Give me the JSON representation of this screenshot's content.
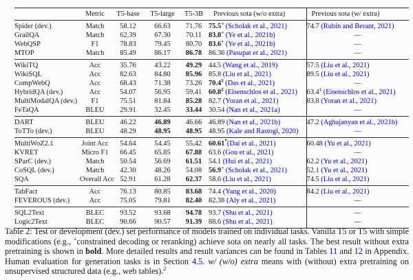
{
  "colors": {
    "link_blue": "#0000CC",
    "text": "#1b1b1b",
    "rule": "#2a2a2a"
  },
  "table": {
    "em_dash": "—",
    "headers": [
      "",
      "Metric",
      "T5-base",
      "T5-large",
      "T5-3B",
      "Previous sota (w/o extra)",
      "Previous sota (w/ extra)"
    ],
    "groups": [
      [
        {
          "task": "Spider (dev.)",
          "metric": "Match",
          "values": [
            "58.12",
            "66.63",
            "71.76"
          ],
          "bold_cols": [],
          "sota_wo": {
            "num": "75.5",
            "bold": true,
            "sup": "+",
            "cite": "(Scholak et al., 2021)"
          },
          "sota_w": {
            "num": "74.7",
            "bold": false,
            "sup": "",
            "cite": "(Rubin and Berant, 2021)"
          }
        },
        {
          "task": "GrailQA",
          "metric": "Match",
          "values": [
            "62.39",
            "67.30",
            "70.11"
          ],
          "bold_cols": [],
          "sota_wo": {
            "num": "83.8",
            "bold": true,
            "sup": "+",
            "cite": "(Ye et al., 2021b)"
          },
          "sota_w": null
        },
        {
          "task": "WebQSP",
          "metric": "F1",
          "values": [
            "78.83",
            "79.45",
            "80.70"
          ],
          "bold_cols": [],
          "sota_wo": {
            "num": "83.6",
            "bold": true,
            "sup": "+",
            "cite": "(Ye et al., 2021b)"
          },
          "sota_w": null
        },
        {
          "task": "MTOP",
          "metric": "Match",
          "values": [
            "85.49",
            "86.17",
            "86.78"
          ],
          "bold_cols": [
            2
          ],
          "sota_wo": {
            "num": "86.36",
            "bold": false,
            "sup": "",
            "cite": "(Pasupat et al., 2021)"
          },
          "sota_w": null
        }
      ],
      [
        {
          "task": "WikiTQ",
          "metric": "Acc",
          "values": [
            "35.76",
            "43.22",
            "49.29"
          ],
          "bold_cols": [
            2
          ],
          "sota_wo": {
            "num": "44.5",
            "bold": false,
            "sup": "",
            "cite": "(Wang et al., 2019)"
          },
          "sota_w": {
            "num": "57.5",
            "bold": false,
            "sup": "",
            "cite": "(Liu et al., 2021)"
          }
        },
        {
          "task": "WikiSQL",
          "metric": "Acc",
          "values": [
            "82.63",
            "84.80",
            "85.96"
          ],
          "bold_cols": [
            2
          ],
          "sota_wo": {
            "num": "85.8",
            "bold": false,
            "sup": "",
            "cite": "(Liu et al., 2021)"
          },
          "sota_w": {
            "num": "89.5",
            "bold": false,
            "sup": "",
            "cite": "(Liu et al., 2021)"
          }
        },
        {
          "task": "CompWebQ",
          "metric": "Acc",
          "values": [
            "68.43",
            "71.38",
            "73.26"
          ],
          "bold_cols": [],
          "sota_wo": {
            "num": "70.4",
            "bold": true,
            "sup": "‡",
            "cite": "(Das et al., 2021)"
          },
          "sota_w": null
        },
        {
          "task": "HybridQA (dev.)",
          "metric": "Acc",
          "values": [
            "54.07",
            "56.95",
            "59.41"
          ],
          "bold_cols": [],
          "sota_wo": {
            "num": "60.8",
            "bold": true,
            "sup": "‡",
            "cite": "(Eisenschlos et al., 2021)"
          },
          "sota_w": {
            "num": "63.4",
            "bold": false,
            "sup": "‡",
            "cite": "(Eisenschlos et al., 2021)"
          }
        },
        {
          "task": "MultiModalQA (dev.)",
          "metric": "F1",
          "values": [
            "75.51",
            "81.84",
            "85.28"
          ],
          "bold_cols": [
            2
          ],
          "sota_wo": {
            "num": "82.7",
            "bold": false,
            "sup": "",
            "cite": "(Yoran et al., 2021)"
          },
          "sota_w": {
            "num": "83.8",
            "bold": false,
            "sup": "",
            "cite": "(Yoran et al., 2021)"
          }
        },
        {
          "task": "FeTaQA",
          "metric": "BLEU",
          "values": [
            "29.91",
            "32.45",
            "33.44"
          ],
          "bold_cols": [
            2
          ],
          "sota_wo": {
            "num": "30.54",
            "bold": false,
            "sup": "",
            "cite": "(Nan et al., 2021a)"
          },
          "sota_w": null
        }
      ],
      [
        {
          "task": "DART",
          "metric": "BLEU",
          "values": [
            "46.22",
            "46.89",
            "46.66"
          ],
          "bold_cols": [
            1
          ],
          "sota_wo": {
            "num": "46.89",
            "bold": false,
            "sup": "",
            "cite": "(Nan et al., 2021b)"
          },
          "sota_w": {
            "num": "47.2",
            "bold": false,
            "sup": "",
            "cite": "(Aghajanyan et al., 2021b)"
          }
        },
        {
          "task": "ToTTo (dev.)",
          "metric": "BLEU",
          "values": [
            "48.29",
            "48.95",
            "48.95"
          ],
          "bold_cols": [
            1,
            2
          ],
          "sota_wo": {
            "num": "48.95",
            "bold": false,
            "sup": "",
            "cite": "(Kale and Rastogi, 2020)"
          },
          "sota_w": null
        }
      ],
      [
        {
          "task": "MultiWoZ2.1",
          "metric": "Joint Acc",
          "values": [
            "54.64",
            "54.45",
            "55.42"
          ],
          "bold_cols": [],
          "sota_wo": {
            "num": "60.61",
            "bold": true,
            "sup": "*",
            "cite": "(Dai et al., 2021)",
            "nogap": true
          },
          "sota_w": {
            "num": "60.48",
            "bold": false,
            "sup": "",
            "cite": "(Yu et al., 2021)"
          }
        },
        {
          "task": "KVRET",
          "metric": "Micro F1",
          "values": [
            "66.45",
            "65.85",
            "67.88"
          ],
          "bold_cols": [
            2
          ],
          "sota_wo": {
            "num": "63.6",
            "bold": false,
            "sup": "",
            "cite": "(Gou et al., 2021)"
          },
          "sota_w": null
        },
        {
          "task": "SParC (dev.)",
          "metric": "Match",
          "values": [
            "50.54",
            "56.69",
            "61.51"
          ],
          "bold_cols": [
            2
          ],
          "sota_wo": {
            "num": "54.1",
            "bold": false,
            "sup": "",
            "cite": "(Hui et al., 2021)"
          },
          "sota_w": {
            "num": "62.2",
            "bold": false,
            "sup": "",
            "cite": "(Yu et al., 2021)"
          }
        },
        {
          "task": "CoSQL (dev.)",
          "metric": "Match",
          "values": [
            "42.30",
            "48.26",
            "54.08"
          ],
          "bold_cols": [],
          "sota_wo": {
            "num": "56.9",
            "bold": true,
            "sup": "+",
            "cite": "(Scholak et al., 2021)"
          },
          "sota_w": {
            "num": "52.1",
            "bold": false,
            "sup": "",
            "cite": "(Yu et al., 2021)"
          }
        },
        {
          "task": "SQA",
          "metric": "Overall Acc",
          "values": [
            "52.91",
            "61.28",
            "62.37"
          ],
          "bold_cols": [
            2
          ],
          "sota_wo": {
            "num": "58.6",
            "bold": false,
            "sup": "",
            "cite": "(Liu et al., 2021)"
          },
          "sota_w": {
            "num": "74.5",
            "bold": false,
            "sup": "",
            "cite": "(Liu et al., 2021)"
          }
        }
      ],
      [
        {
          "task": "TabFact",
          "metric": "Acc",
          "values": [
            "76.13",
            "80.85",
            "83.68"
          ],
          "bold_cols": [
            2
          ],
          "sota_wo": {
            "num": "74.4",
            "bold": false,
            "sup": "",
            "cite": "(Yang et al., 2020)"
          },
          "sota_w": {
            "num": "84.2",
            "bold": false,
            "sup": "",
            "cite": "(Liu et al., 2021)"
          }
        },
        {
          "task": "FEVEROUS (dev.)",
          "metric": "Acc",
          "values": [
            "75.05",
            "79.81",
            "82.40"
          ],
          "bold_cols": [
            2
          ],
          "sota_wo": {
            "num": "82.38",
            "bold": false,
            "sup": "",
            "cite": "(Aly et al., 2021)"
          },
          "sota_w": null
        }
      ],
      [
        {
          "task": "SQL2Text",
          "metric": "BLEC",
          "values": [
            "93.52",
            "93.68",
            "94.78"
          ],
          "bold_cols": [
            2
          ],
          "sota_wo": {
            "num": "93.7",
            "bold": false,
            "sup": "",
            "cite": "(Shu et al., 2021)"
          },
          "sota_w": null
        },
        {
          "task": "Logic2Text",
          "metric": "BLEC",
          "values": [
            "90.66",
            "90.57",
            "91.39"
          ],
          "bold_cols": [
            2
          ],
          "sota_wo": {
            "num": "88.6",
            "bold": false,
            "sup": "",
            "cite": "(Shu et al., 2021)"
          },
          "sota_w": null
        }
      ]
    ]
  },
  "caption": {
    "segments": [
      {
        "t": "Table 2: Test or development (dev.) set performance of models trained on individual tasks. Vanilla T5 or T5 with simple modifications (e.g., ",
        "s": "n"
      },
      {
        "t": "+",
        "s": "sup"
      },
      {
        "t": "constrained decoding or reranking) achieve sota on nearly all tasks.  The best result without extra pretraining is shown in ",
        "s": "n"
      },
      {
        "t": "bold",
        "s": "b"
      },
      {
        "t": ".  More detailed results and result variances can be found in Tables ",
        "s": "n"
      },
      {
        "t": "11",
        "s": "link"
      },
      {
        "t": " and ",
        "s": "n"
      },
      {
        "t": "12",
        "s": "link"
      },
      {
        "t": " in Appendix.  Human evaluation for generation tasks is in Section ",
        "s": "n"
      },
      {
        "t": "4.5",
        "s": "link"
      },
      {
        "t": ". ",
        "s": "n"
      },
      {
        "t": "w/ (w/o) extra",
        "s": "i"
      },
      {
        "t": " means with (without) extra pretraining on unsupervised structured data (e.g., web tables).",
        "s": "n"
      },
      {
        "t": "2",
        "s": "suplink"
      }
    ]
  }
}
